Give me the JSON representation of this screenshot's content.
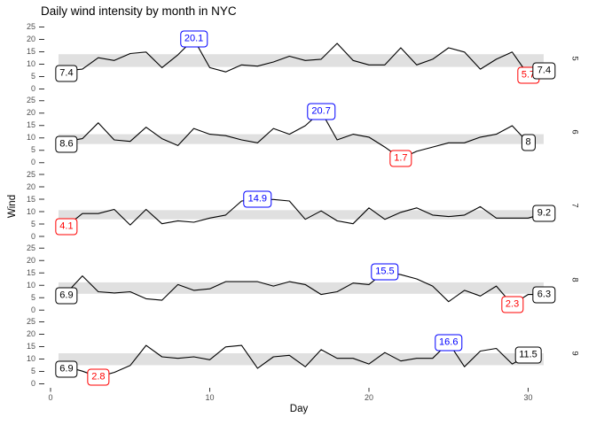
{
  "title": "Daily wind intensity by month in NYC",
  "axes": {
    "x_label": "Day",
    "y_label": "Wind",
    "x_ticks": [
      0,
      10,
      20,
      30
    ],
    "y_ticks": [
      0,
      5,
      10,
      15,
      20,
      25
    ]
  },
  "colors": {
    "line": "#000000",
    "band": "#e0e0e0",
    "first_last_label": "#000000",
    "max_label": "#0000ff",
    "min_label": "#ff0000",
    "tick_text": "#4d4d4d",
    "tick_mark": "#333333"
  },
  "chart_data": {
    "type": "line",
    "title": "Daily wind intensity by month in NYC",
    "xlabel": "Day",
    "ylabel": "Wind",
    "x_range": [
      0,
      32
    ],
    "y_range_per_facet": [
      -1.5,
      26.5
    ],
    "grid": false,
    "facet_side": "right",
    "day_start": 1,
    "facets": [
      {
        "month": "5",
        "values": [
          7.4,
          8.0,
          12.6,
          11.5,
          14.3,
          14.9,
          8.6,
          13.8,
          20.1,
          8.6,
          6.9,
          9.7,
          9.2,
          10.9,
          13.2,
          11.5,
          12.0,
          18.4,
          11.5,
          9.7,
          9.7,
          16.6,
          9.7,
          12.0,
          16.6,
          14.9,
          8.0,
          12.0,
          14.9,
          5.7,
          7.4
        ],
        "band": {
          "ymin": 8.9,
          "ymax": 14.05
        },
        "labels": [
          {
            "text": "7.4",
            "kind": "first",
            "day": 1,
            "value": 7.4
          },
          {
            "text": "20.1",
            "kind": "max",
            "day": 9,
            "value": 20.1
          },
          {
            "text": "5.7",
            "kind": "min",
            "day": 30,
            "value": 5.7
          },
          {
            "text": "7.4",
            "kind": "last",
            "day": 31,
            "value": 7.4
          }
        ]
      },
      {
        "month": "6",
        "values": [
          8.6,
          9.7,
          16.1,
          9.2,
          8.6,
          14.3,
          9.7,
          6.9,
          13.8,
          11.5,
          10.9,
          9.2,
          8.0,
          13.8,
          11.5,
          14.9,
          20.7,
          9.2,
          11.5,
          10.3,
          6.3,
          1.7,
          4.6,
          6.3,
          8.0,
          8.0,
          10.3,
          11.5,
          14.9,
          8.0
        ],
        "band": {
          "ymin": 7.55,
          "ymax": 11.5
        },
        "labels": [
          {
            "text": "8.6",
            "kind": "first",
            "day": 1,
            "value": 8.6
          },
          {
            "text": "20.7",
            "kind": "max",
            "day": 17,
            "value": 20.7
          },
          {
            "text": "1.7",
            "kind": "min",
            "day": 22,
            "value": 1.7
          },
          {
            "text": "8",
            "kind": "last",
            "day": 30,
            "value": 8.0
          }
        ]
      },
      {
        "month": "7",
        "values": [
          4.1,
          9.2,
          9.2,
          10.9,
          4.6,
          10.9,
          5.1,
          6.3,
          5.7,
          7.4,
          8.6,
          14.3,
          14.9,
          14.9,
          14.3,
          6.9,
          10.3,
          6.3,
          5.1,
          11.5,
          6.9,
          9.7,
          11.5,
          8.6,
          8.0,
          8.6,
          12.0,
          7.4,
          7.4,
          7.4,
          9.2
        ],
        "band": {
          "ymin": 6.9,
          "ymax": 10.6
        },
        "labels": [
          {
            "text": "4.1",
            "kind": "min",
            "day": 1,
            "value": 4.1
          },
          {
            "text": "14.9",
            "kind": "max",
            "day": 13,
            "value": 14.9
          },
          {
            "text": "9.2",
            "kind": "last",
            "day": 31,
            "value": 9.2
          }
        ]
      },
      {
        "month": "8",
        "values": [
          6.9,
          13.8,
          7.4,
          6.9,
          7.4,
          4.6,
          4.0,
          10.3,
          8.0,
          8.6,
          11.5,
          11.5,
          11.5,
          9.7,
          11.5,
          10.3,
          6.3,
          7.4,
          10.9,
          10.3,
          15.5,
          14.3,
          12.6,
          9.7,
          3.4,
          8.0,
          5.7,
          9.7,
          2.3,
          6.3,
          6.3
        ],
        "band": {
          "ymin": 6.6,
          "ymax": 11.2
        },
        "labels": [
          {
            "text": "6.9",
            "kind": "first",
            "day": 1,
            "value": 6.9
          },
          {
            "text": "15.5",
            "kind": "max",
            "day": 21,
            "value": 15.5
          },
          {
            "text": "2.3",
            "kind": "min",
            "day": 29,
            "value": 2.3
          },
          {
            "text": "6.3",
            "kind": "last",
            "day": 31,
            "value": 6.3
          }
        ]
      },
      {
        "month": "9",
        "values": [
          6.9,
          5.1,
          2.8,
          4.6,
          7.4,
          15.5,
          10.9,
          10.3,
          10.9,
          9.7,
          14.9,
          15.5,
          6.3,
          10.9,
          11.5,
          6.9,
          13.8,
          10.3,
          10.3,
          8.0,
          12.6,
          9.2,
          10.3,
          10.3,
          16.6,
          6.9,
          13.2,
          14.3,
          8.0,
          11.5
        ],
        "band": {
          "ymin": 7.55,
          "ymax": 12.33
        },
        "labels": [
          {
            "text": "6.9",
            "kind": "first",
            "day": 1,
            "value": 6.9
          },
          {
            "text": "2.8",
            "kind": "min",
            "day": 3,
            "value": 2.8
          },
          {
            "text": "16.6",
            "kind": "max",
            "day": 25,
            "value": 16.6
          },
          {
            "text": "11.5",
            "kind": "last",
            "day": 30,
            "value": 11.5
          }
        ]
      }
    ]
  }
}
